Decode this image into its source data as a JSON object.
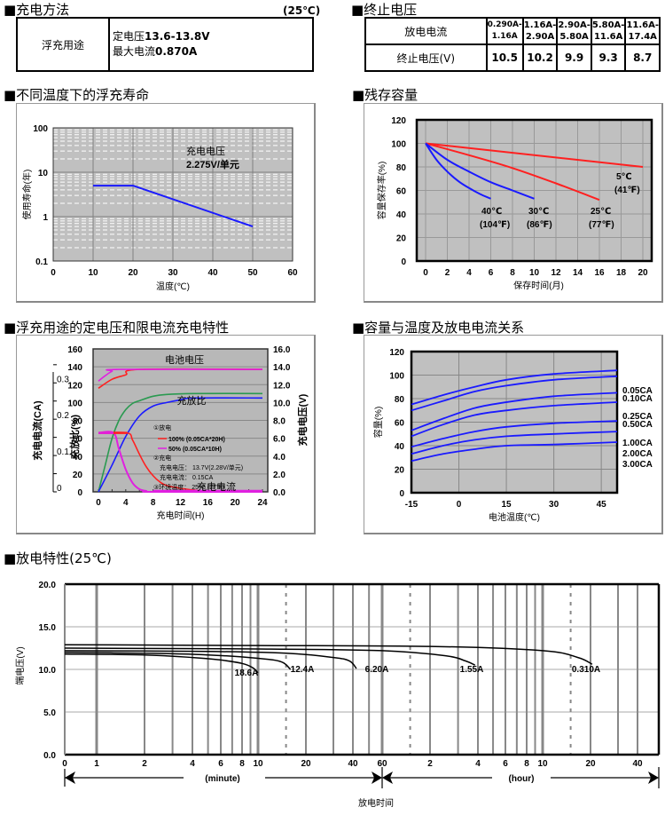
{
  "sections": {
    "charge_method": {
      "title": "■充电方法",
      "temp_note": "(25℃)",
      "row_label": "浮充用途",
      "line1_prefix": "定电压",
      "line1_value": "13.6-13.8V",
      "line2_prefix": "最大电流",
      "line2_value": "0.870A"
    },
    "cutoff_voltage": {
      "title": "■终止电压",
      "header_label": "放电电流",
      "row_label": "终止电压(V)",
      "columns": [
        {
          "range_top": "0.290A-",
          "range_bottom": "1.16A",
          "voltage": "10.5"
        },
        {
          "range_top": "1.16A-",
          "range_bottom": "2.90A",
          "voltage": "10.2"
        },
        {
          "range_top": "2.90A-",
          "range_bottom": "5.80A",
          "voltage": "9.9"
        },
        {
          "range_top": "5.80A-",
          "range_bottom": "11.6A",
          "voltage": "9.3"
        },
        {
          "range_top": "11.6A-",
          "range_bottom": "17.4A",
          "voltage": "8.7"
        }
      ]
    },
    "float_life_title": "■不同温度下的浮充寿命",
    "residual_title": "■残存容量",
    "charging_title": "■浮充用途的定电压和限电流充电特性",
    "capacity_temp_title": "■容量与温度及放电电流关系",
    "discharge_title": "■放电特性(25℃)"
  },
  "chart_data": [
    {
      "id": "float-life",
      "type": "line",
      "title": "",
      "xlabel": "温度(℃)",
      "ylabel": "使用寿命(年)",
      "xlim": [
        0,
        60
      ],
      "ylim": [
        0.1,
        100
      ],
      "yscale": "log",
      "x_ticks": [
        "0",
        "10",
        "20",
        "30",
        "40",
        "50",
        "60"
      ],
      "y_ticks": [
        "0.1",
        "1",
        "10",
        "100"
      ],
      "grid": true,
      "annotation_line1": "充电电压",
      "annotation_line2": "2.275V/单元",
      "series": [
        {
          "name": "life",
          "color": "#1a1aff",
          "x": [
            10,
            20,
            50
          ],
          "y": [
            5,
            5,
            0.6
          ]
        }
      ]
    },
    {
      "id": "residual-capacity",
      "type": "line",
      "xlabel": "保存时间(月)",
      "ylabel": "容量保存率(%)",
      "xlim": [
        0,
        20
      ],
      "ylim": [
        0,
        120
      ],
      "x_ticks": [
        "0",
        "2",
        "4",
        "6",
        "8",
        "10",
        "12",
        "14",
        "16",
        "18",
        "20"
      ],
      "y_ticks": [
        "0",
        "20",
        "40",
        "60",
        "80",
        "100",
        "120"
      ],
      "grid": true,
      "series": [
        {
          "name": "5℃",
          "sub": "(41℉)",
          "color": "#ff2020",
          "x": [
            0,
            20
          ],
          "y": [
            100,
            80
          ]
        },
        {
          "name": "25℃",
          "sub": "(77℉)",
          "color": "#ff2020",
          "x": [
            0,
            4,
            8,
            12,
            16
          ],
          "y": [
            100,
            90,
            79,
            66,
            52
          ]
        },
        {
          "name": "30℃",
          "sub": "(86℉)",
          "color": "#1a1aff",
          "x": [
            0,
            2,
            4,
            6,
            8,
            10
          ],
          "y": [
            100,
            86,
            76,
            67,
            60,
            53
          ]
        },
        {
          "name": "40℃",
          "sub": "(104℉)",
          "color": "#1a1aff",
          "x": [
            0,
            1,
            2,
            3,
            4,
            5,
            6
          ],
          "y": [
            100,
            86,
            76,
            68,
            62,
            57,
            53
          ]
        }
      ]
    },
    {
      "id": "charging-characteristics",
      "type": "line",
      "xlabel": "充电时间(H)",
      "ylabel_left_outer": "充电电流(CA)",
      "ylabel_left_inner": "充放比(%)",
      "ylabel_right": "充电电压(V)",
      "xlim": [
        0,
        24
      ],
      "ylim_left": [
        0,
        160
      ],
      "ylim_right": [
        0,
        16
      ],
      "ylim_current": [
        0,
        0.35
      ],
      "x_ticks": [
        "0",
        "4",
        "8",
        "12",
        "16",
        "20",
        "24"
      ],
      "y_ticks_left": [
        "0",
        "20",
        "40",
        "60",
        "80",
        "100",
        "120",
        "140",
        "160"
      ],
      "y_ticks_right": [
        "0.0",
        "2.0",
        "4.0",
        "6.0",
        "8.0",
        "10.0",
        "12.0",
        "14.0",
        "16.0"
      ],
      "y_ticks_current": [
        "0",
        "0.1",
        "0.2",
        "0.3"
      ],
      "labels": {
        "battery_voltage": "电池电压",
        "charge_ratio": "充放比",
        "charge_current": "充电电流"
      },
      "legend": {
        "discharge_header": "①放电",
        "item_100": "100% (0.05CA*20H)",
        "item_50": "50% (0.05CA*10H)",
        "charge_header": "②充电",
        "charge_voltage": "充电电压： 13.7V(2.28V/单元)",
        "charge_current": "充电电流： 0.15CA",
        "ambient": "③环境温度： 25℃ (77℉)"
      },
      "series": [
        {
          "name": "voltage-100",
          "color": "#ff2020",
          "x": [
            0,
            2,
            4,
            6,
            24
          ],
          "y": [
            116,
            126,
            131,
            137,
            137
          ]
        },
        {
          "name": "voltage-50",
          "color": "#e020e0",
          "x": [
            0,
            1,
            2,
            3,
            24
          ],
          "y": [
            124,
            130,
            135,
            137,
            137
          ]
        },
        {
          "name": "ratio-green",
          "color": "#2a9a50",
          "x": [
            0,
            1,
            2,
            3,
            4,
            5,
            6,
            8,
            10,
            14,
            24
          ],
          "y": [
            0,
            30,
            60,
            80,
            92,
            99,
            102,
            107,
            109,
            110,
            110
          ]
        },
        {
          "name": "ratio-blue",
          "color": "#1a1aff",
          "x": [
            0,
            2,
            4,
            6,
            8,
            10,
            12,
            14,
            24
          ],
          "y": [
            0,
            30,
            62,
            85,
            96,
            100,
            103,
            105,
            105
          ]
        },
        {
          "name": "current-100",
          "color": "#ff2020",
          "x": [
            0,
            4.2,
            5,
            6,
            7,
            8,
            9,
            10,
            12,
            14,
            16,
            24
          ],
          "y": [
            66,
            66,
            58,
            42,
            28,
            18,
            11,
            7,
            4,
            2,
            1,
            1
          ]
        },
        {
          "name": "current-50",
          "color": "#e020e0",
          "x": [
            0,
            2.2,
            3,
            4,
            5,
            6,
            7,
            8,
            24
          ],
          "y": [
            66,
            66,
            48,
            25,
            10,
            3,
            1,
            0,
            0
          ]
        }
      ]
    },
    {
      "id": "capacity-vs-temperature",
      "type": "line",
      "xlabel": "电池温度(℃)",
      "ylabel": "容量(%)",
      "xlim": [
        -15,
        50
      ],
      "ylim": [
        0,
        120
      ],
      "x_ticks": [
        "-15",
        "0",
        "15",
        "30",
        "45"
      ],
      "y_ticks": [
        "0",
        "20",
        "40",
        "60",
        "80",
        "100",
        "120"
      ],
      "grid": true,
      "series": [
        {
          "name": "0.05CA",
          "color": "#1a1aff",
          "x": [
            -15,
            -5,
            5,
            15,
            30,
            50
          ],
          "y": [
            75,
            83,
            90,
            96,
            101,
            104
          ]
        },
        {
          "name": "0.10CA",
          "color": "#1a1aff",
          "x": [
            -15,
            -5,
            5,
            15,
            30,
            50
          ],
          "y": [
            70,
            78,
            86,
            91,
            96,
            99
          ]
        },
        {
          "name": "0.25CA",
          "color": "#1a1aff",
          "x": [
            -15,
            -5,
            5,
            15,
            30,
            50
          ],
          "y": [
            53,
            63,
            72,
            77,
            82,
            85
          ]
        },
        {
          "name": "0.50CA",
          "color": "#1a1aff",
          "x": [
            -15,
            -5,
            5,
            15,
            30,
            50
          ],
          "y": [
            48,
            58,
            66,
            70,
            74,
            77
          ]
        },
        {
          "name": "1.00CA",
          "color": "#1a1aff",
          "x": [
            -15,
            -5,
            5,
            15,
            30,
            50
          ],
          "y": [
            39,
            46,
            52,
            56,
            59,
            61
          ]
        },
        {
          "name": "2.00CA",
          "color": "#1a1aff",
          "x": [
            -15,
            -5,
            5,
            15,
            30,
            50
          ],
          "y": [
            33,
            40,
            45,
            48,
            50,
            52
          ]
        },
        {
          "name": "3.00CA",
          "color": "#1a1aff",
          "x": [
            -15,
            -5,
            5,
            15,
            30,
            50
          ],
          "y": [
            27,
            33,
            37,
            40,
            41,
            43
          ]
        }
      ]
    },
    {
      "id": "discharge-characteristics",
      "type": "line",
      "xlabel": "放电时间",
      "ylabel": "端电压(V)",
      "ylim": [
        0,
        20
      ],
      "y_ticks": [
        "0.0",
        "5.0",
        "10.0",
        "15.0",
        "20.0"
      ],
      "x_ticks_minute": [
        "0",
        "1",
        "2",
        "4",
        "6",
        "8",
        "10",
        "20",
        "40",
        "60"
      ],
      "x_ticks_hour": [
        "2",
        "4",
        "6",
        "8",
        "10",
        "20",
        "40"
      ],
      "minute_label": "(minute)",
      "hour_label": "(hour)",
      "x_unit": "minutes (log)",
      "xlim_minutes": [
        0.5,
        3600
      ],
      "series": [
        {
          "name": "18.6A",
          "color": "#000000",
          "x": [
            0.5,
            2,
            4,
            6,
            8,
            9.3,
            10
          ],
          "y": [
            11.8,
            11.7,
            11.4,
            11.1,
            10.7,
            10.2,
            9.6
          ]
        },
        {
          "name": "12.4A",
          "color": "#000000",
          "x": [
            0.5,
            2,
            5,
            10,
            14,
            16
          ],
          "y": [
            12.0,
            11.9,
            11.7,
            11.3,
            10.9,
            10.0
          ]
        },
        {
          "name": "6.20A",
          "color": "#000000",
          "x": [
            0.5,
            5,
            15,
            30,
            38,
            42
          ],
          "y": [
            12.2,
            12.1,
            11.9,
            11.4,
            11.0,
            10.1
          ]
        },
        {
          "name": "1.55A",
          "color": "#000000",
          "x": [
            0.5,
            10,
            60,
            150,
            200,
            230
          ],
          "y": [
            12.5,
            12.4,
            12.2,
            11.6,
            11.0,
            10.5
          ]
        },
        {
          "name": "0.310A",
          "color": "#000000",
          "x": [
            0.5,
            10,
            120,
            600,
            1000,
            1230
          ],
          "y": [
            12.9,
            12.8,
            12.7,
            12.2,
            11.4,
            10.6
          ]
        }
      ]
    }
  ]
}
